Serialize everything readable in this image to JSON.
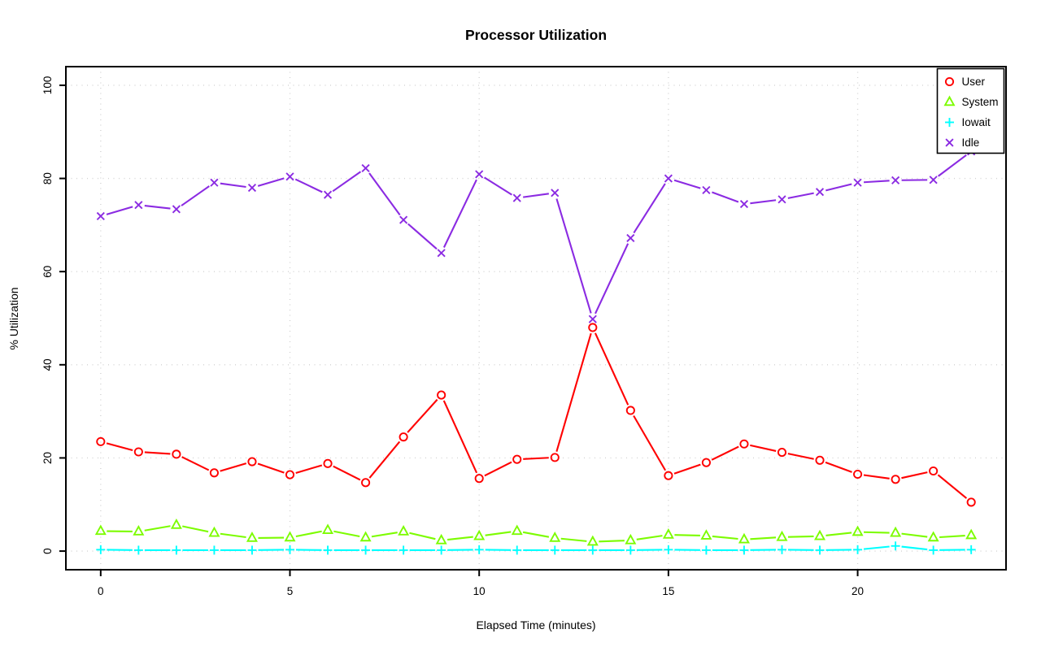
{
  "page": {
    "background": "#ffffff"
  },
  "chart_data": {
    "type": "line",
    "title": "Processor Utilization",
    "xlabel": "Elapsed Time (minutes)",
    "ylabel": "% Utilization",
    "x": [
      0,
      1,
      2,
      3,
      4,
      5,
      6,
      7,
      8,
      9,
      10,
      11,
      12,
      13,
      14,
      15,
      16,
      17,
      18,
      19,
      20,
      21,
      22,
      23
    ],
    "xticks": [
      0,
      5,
      10,
      15,
      20
    ],
    "yticks": [
      0,
      20,
      40,
      60,
      80,
      100
    ],
    "xlim": [
      0,
      23
    ],
    "ylim": [
      0,
      100
    ],
    "grid": true,
    "grid_style": "dotted",
    "grid_color": "#d3d3d3",
    "legend_position": "top-right",
    "series": [
      {
        "name": "User",
        "color": "#ff0000",
        "marker": "circle",
        "values": [
          23.5,
          21.3,
          20.8,
          16.8,
          19.2,
          16.4,
          18.8,
          14.7,
          24.5,
          33.5,
          15.6,
          19.7,
          20.1,
          48.0,
          30.2,
          16.2,
          19.0,
          23.0,
          21.2,
          19.5,
          16.5,
          15.4,
          17.2,
          10.5
        ]
      },
      {
        "name": "System",
        "color": "#7cfc00",
        "marker": "triangle",
        "values": [
          4.3,
          4.2,
          5.6,
          3.9,
          2.8,
          2.9,
          4.5,
          2.9,
          4.2,
          2.3,
          3.2,
          4.3,
          2.8,
          2.0,
          2.3,
          3.5,
          3.3,
          2.5,
          3.0,
          3.2,
          4.1,
          3.9,
          2.9,
          3.4
        ]
      },
      {
        "name": "Iowait",
        "color": "#00ffff",
        "marker": "plus",
        "values": [
          0.3,
          0.2,
          0.2,
          0.2,
          0.2,
          0.3,
          0.2,
          0.2,
          0.2,
          0.2,
          0.3,
          0.2,
          0.2,
          0.2,
          0.2,
          0.3,
          0.2,
          0.2,
          0.3,
          0.2,
          0.3,
          1.1,
          0.2,
          0.3
        ]
      },
      {
        "name": "Idle",
        "color": "#8b2be2",
        "marker": "x",
        "values": [
          71.9,
          74.3,
          73.4,
          79.1,
          78.0,
          80.4,
          76.5,
          82.2,
          71.1,
          64.0,
          80.9,
          75.8,
          76.9,
          49.8,
          67.2,
          80.0,
          77.5,
          74.5,
          75.5,
          77.1,
          79.1,
          79.6,
          79.7,
          85.8
        ]
      }
    ]
  }
}
